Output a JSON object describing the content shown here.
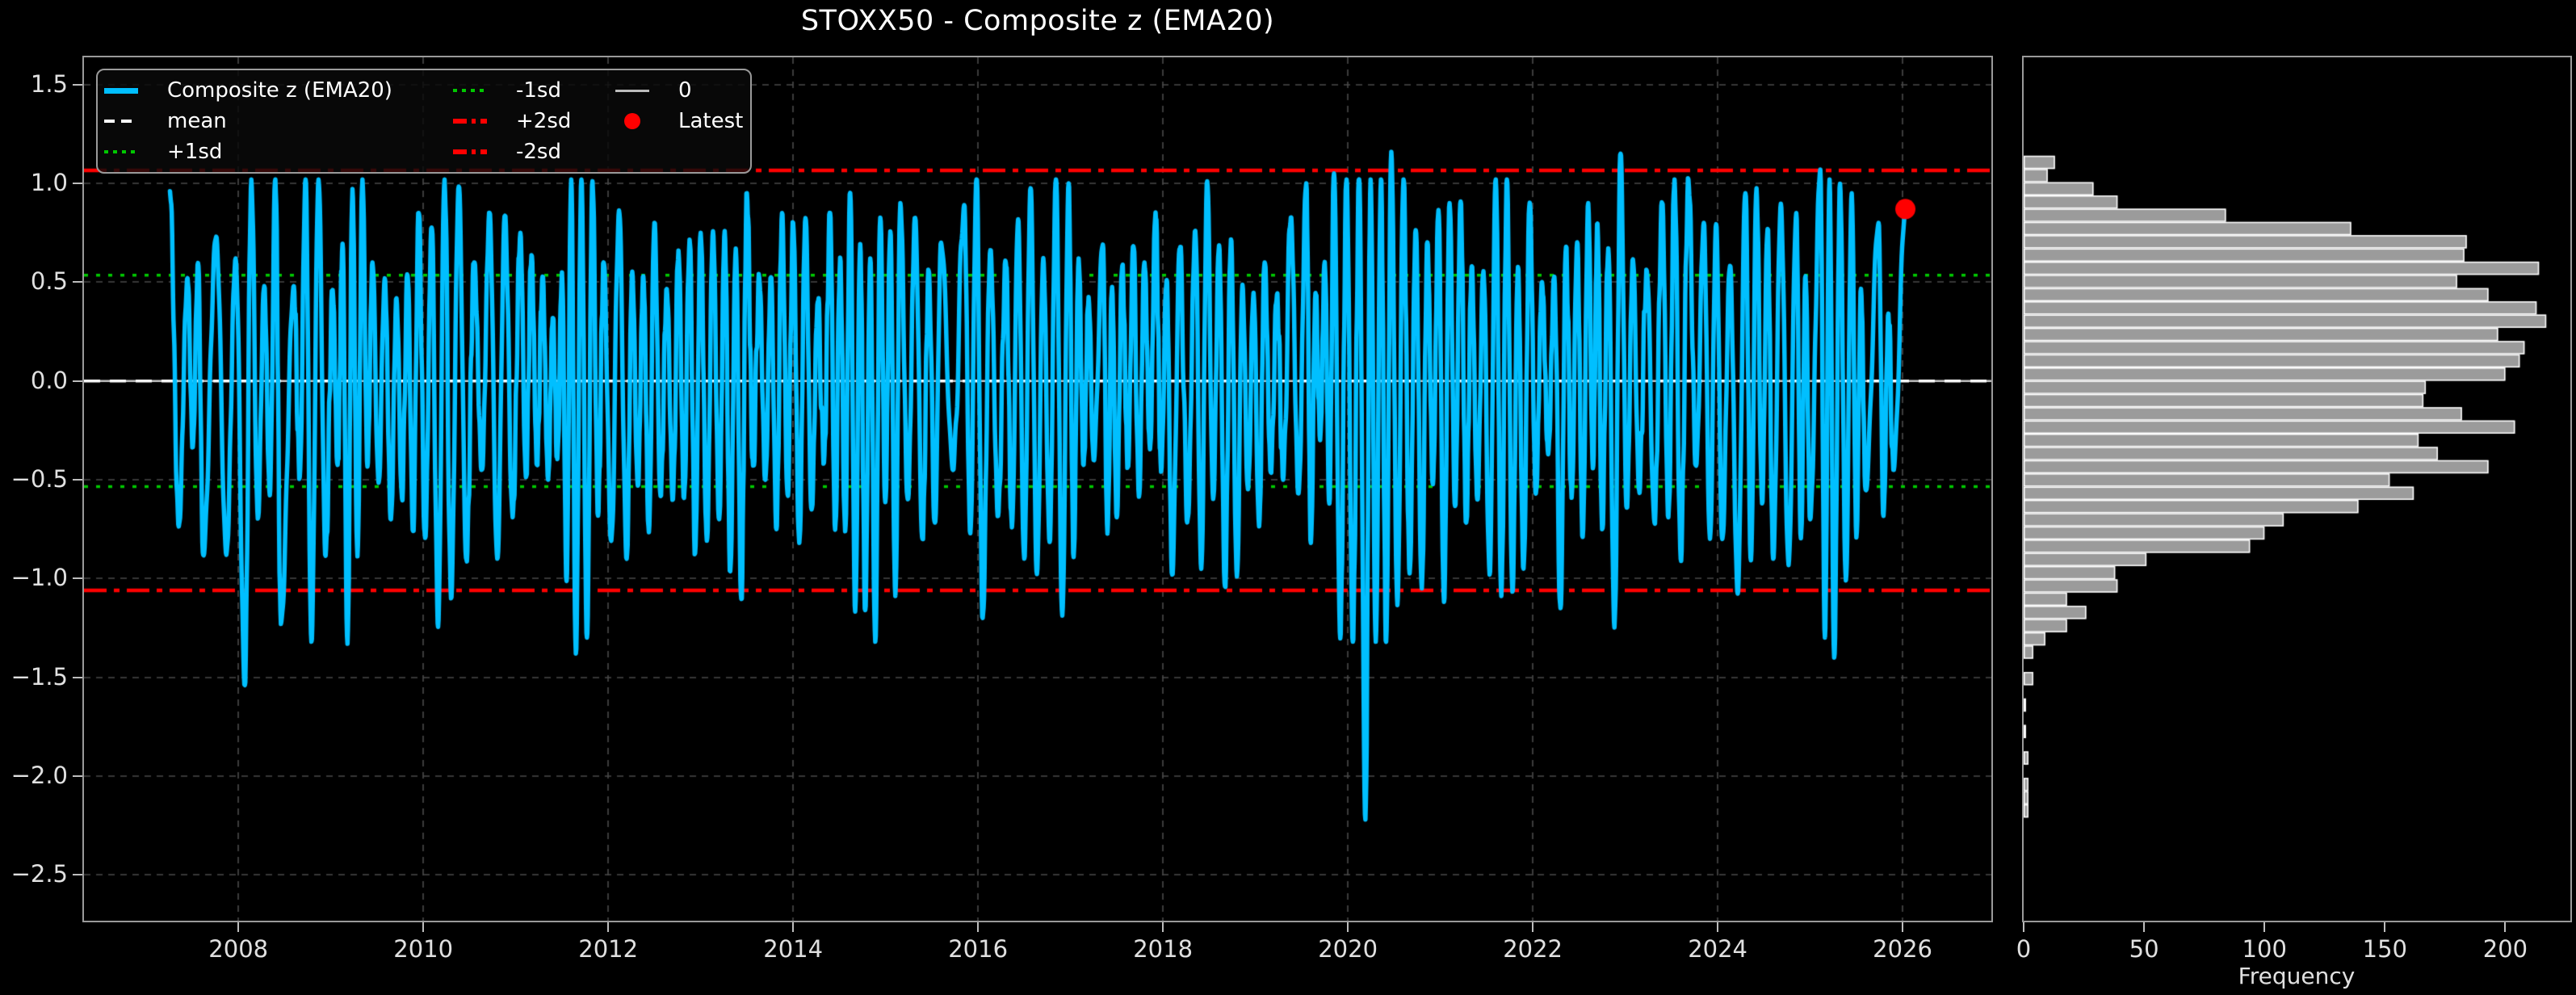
{
  "figure": {
    "title": "STOXX50 - Composite z (EMA20)",
    "background": "#000000"
  },
  "colors": {
    "series": "#00BFFF",
    "mean": "#FFFFFF",
    "sd1": "#00C800",
    "sd2": "#FF0000",
    "zero": "#C8C8C8",
    "latest_dot": "#FF0000",
    "hist_bar": "#9B9B9B",
    "hist_bar_edge": "#FFFFFF",
    "grid": "#4A4A4A",
    "spine": "#9A9A9A",
    "text": "#E0E0E0",
    "title_text": "#FFFFFF"
  },
  "legend": {
    "items": [
      {
        "label": "Composite z (EMA20)",
        "glyph": "line-thick",
        "color": "#00BFFF"
      },
      {
        "label": "mean",
        "glyph": "line-dashed",
        "color": "#FFFFFF"
      },
      {
        "label": "+1sd",
        "glyph": "line-dotted",
        "color": "#00C800"
      },
      {
        "label": "-1sd",
        "glyph": "line-dotted",
        "color": "#00C800"
      },
      {
        "label": "+2sd",
        "glyph": "line-dashdot",
        "color": "#FF0000"
      },
      {
        "label": "-2sd",
        "glyph": "line-dashdot",
        "color": "#FF0000"
      },
      {
        "label": "0",
        "glyph": "line-solid",
        "color": "#BBBBBB"
      },
      {
        "label": "Latest",
        "glyph": "circle",
        "color": "#FF0000"
      }
    ]
  },
  "chart_data": [
    {
      "type": "line",
      "title": "STOXX50 - Composite z (EMA20)",
      "series_name": "Composite z (EMA20)",
      "xlim": [
        2006.33,
        2026.96
      ],
      "ylim": [
        -2.732,
        1.638
      ],
      "x_ticks": [
        2008,
        2010,
        2012,
        2014,
        2016,
        2018,
        2020,
        2022,
        2024,
        2026
      ],
      "y_ticks": [
        1.5,
        1.0,
        0.5,
        0.0,
        -0.5,
        -1.0,
        -1.5,
        -2.0,
        -2.5
      ],
      "grid": true,
      "reference_lines": {
        "mean": 0.0,
        "plus1sd": 0.535,
        "minus1sd": -0.535,
        "plus2sd": 1.066,
        "minus2sd": -1.06,
        "zero": 0.0
      },
      "latest": {
        "t": 2026.03,
        "z": 0.87
      },
      "anchors": [
        [
          2007.26,
          0.96
        ],
        [
          2007.45,
          0.52
        ],
        [
          2007.62,
          -0.88
        ],
        [
          2007.76,
          0.73
        ],
        [
          2007.87,
          -0.88
        ],
        [
          2007.97,
          0.62
        ],
        [
          2008.07,
          -1.54
        ],
        [
          2008.28,
          0.48
        ],
        [
          2008.46,
          -1.23
        ],
        [
          2008.6,
          0.48
        ],
        [
          2008.79,
          -1.32
        ],
        [
          2009.02,
          0.46
        ],
        [
          2009.18,
          -1.33
        ],
        [
          2009.45,
          0.6
        ],
        [
          2009.65,
          -0.7
        ],
        [
          2009.95,
          0.85
        ],
        [
          2010.3,
          -1.1
        ],
        [
          2010.55,
          0.6
        ],
        [
          2010.8,
          -0.9
        ],
        [
          2011.05,
          0.75
        ],
        [
          2011.35,
          -0.5
        ],
        [
          2011.5,
          0.55
        ],
        [
          2011.65,
          -1.38
        ],
        [
          2011.95,
          0.6
        ],
        [
          2012.2,
          -0.9
        ],
        [
          2012.5,
          0.8
        ],
        [
          2012.7,
          -0.6
        ],
        [
          2013.0,
          0.75
        ],
        [
          2013.2,
          -0.7
        ],
        [
          2013.5,
          0.95
        ],
        [
          2013.7,
          -0.5
        ],
        [
          2014.0,
          0.8
        ],
        [
          2014.2,
          -0.65
        ],
        [
          2014.4,
          0.85
        ],
        [
          2014.78,
          -1.16
        ],
        [
          2015.16,
          0.9
        ],
        [
          2015.4,
          -0.8
        ],
        [
          2015.6,
          0.7
        ],
        [
          2015.73,
          -0.45
        ],
        [
          2015.85,
          0.89
        ],
        [
          2016.05,
          -1.2
        ],
        [
          2016.3,
          0.6
        ],
        [
          2016.5,
          -0.9
        ],
        [
          2016.98,
          1.0
        ],
        [
          2017.25,
          -0.4
        ],
        [
          2017.35,
          0.69
        ],
        [
          2017.5,
          -0.69
        ],
        [
          2017.8,
          0.6
        ],
        [
          2018.1,
          -0.98
        ],
        [
          2018.35,
          0.76
        ],
        [
          2018.8,
          -0.99
        ],
        [
          2019.1,
          0.6
        ],
        [
          2019.3,
          -0.5
        ],
        [
          2019.55,
          1.0
        ],
        [
          2019.7,
          -0.3
        ],
        [
          2019.85,
          1.05
        ],
        [
          2020.19,
          -2.22
        ],
        [
          2020.47,
          1.16
        ],
        [
          2020.8,
          -1.05
        ],
        [
          2021.1,
          0.9
        ],
        [
          2021.4,
          -0.6
        ],
        [
          2021.6,
          1.02
        ],
        [
          2021.9,
          -0.95
        ],
        [
          2022.1,
          0.5
        ],
        [
          2022.3,
          -1.15
        ],
        [
          2022.6,
          0.9
        ],
        [
          2022.75,
          -0.75
        ],
        [
          2022.95,
          1.15
        ],
        [
          2023.15,
          -0.55
        ],
        [
          2023.4,
          0.9
        ],
        [
          2023.6,
          -0.9
        ],
        [
          2023.85,
          0.8
        ],
        [
          2024.05,
          -0.8
        ],
        [
          2024.3,
          0.95
        ],
        [
          2024.6,
          -0.9
        ],
        [
          2024.85,
          0.85
        ],
        [
          2025.0,
          -0.7
        ],
        [
          2025.11,
          1.07
        ],
        [
          2025.26,
          -1.4
        ],
        [
          2025.45,
          0.95
        ],
        [
          2025.6,
          -0.55
        ],
        [
          2025.74,
          0.8
        ],
        [
          2025.9,
          -0.45
        ],
        [
          2026.03,
          0.87
        ]
      ],
      "synthesis": {
        "seed": 20260203,
        "half_period_years": 0.057,
        "wobble_amp": 0.055
      }
    },
    {
      "type": "histogram",
      "orientation": "horizontal",
      "xlabel": "Frequency",
      "x_ticks": [
        0,
        50,
        100,
        150,
        200
      ],
      "xlim": [
        0,
        227
      ],
      "grid": false,
      "bin_top_z": 1.14,
      "bin_width_z": 0.067,
      "frequencies": [
        13,
        10,
        29,
        39,
        84,
        136,
        184,
        183,
        214,
        180,
        193,
        213,
        217,
        197,
        208,
        206,
        200,
        167,
        166,
        182,
        204,
        164,
        172,
        193,
        152,
        162,
        139,
        108,
        100,
        94,
        51,
        38,
        39,
        18,
        26,
        18,
        9,
        4,
        0,
        4,
        0,
        1,
        0,
        1,
        0,
        2,
        0,
        2,
        2,
        2
      ]
    }
  ]
}
